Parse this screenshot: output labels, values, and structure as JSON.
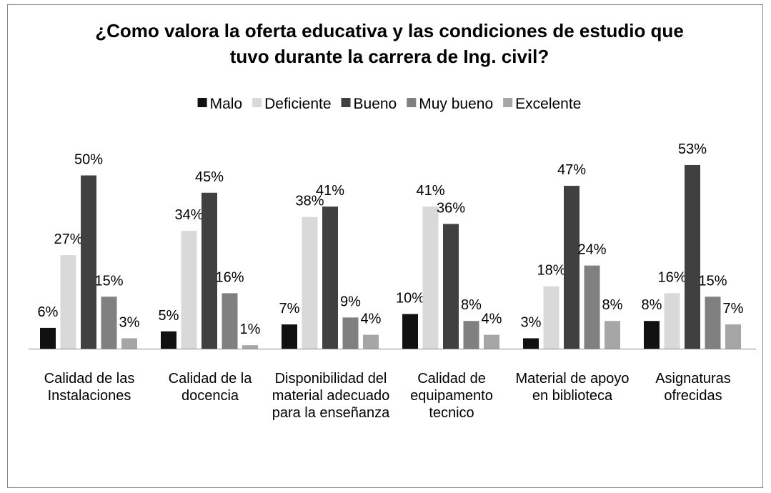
{
  "chart_data": {
    "type": "bar",
    "title": "¿Como valora la oferta educativa y las condiciones de estudio que tuvo durante la carrera de Ing. civil?",
    "categories": [
      "Calidad de las Instalaciones",
      "Calidad de la docencia",
      "Disponibilidad del material adecuado para la enseñanza",
      "Calidad de equipamento tecnico",
      "Material de apoyo en biblioteca",
      "Asignaturas ofrecidas"
    ],
    "series": [
      {
        "name": "Malo",
        "color": "#111111",
        "values": [
          6,
          5,
          7,
          10,
          3,
          8
        ],
        "value_labels": [
          "6%",
          "5%",
          "7%",
          "10%",
          "3%",
          "8%"
        ]
      },
      {
        "name": "Deficiente",
        "color": "#d9d9d9",
        "values": [
          27,
          34,
          38,
          41,
          18,
          16
        ],
        "value_labels": [
          "27%",
          "34%",
          "38%",
          "41%",
          "18%",
          "16%"
        ]
      },
      {
        "name": "Bueno",
        "color": "#404040",
        "values": [
          50,
          45,
          41,
          36,
          47,
          53
        ],
        "value_labels": [
          "50%",
          "45%",
          "41%",
          "36%",
          "47%",
          "53%"
        ]
      },
      {
        "name": "Muy bueno",
        "color": "#808080",
        "values": [
          15,
          16,
          9,
          8,
          24,
          15
        ],
        "value_labels": [
          "15%",
          "16%",
          "9%",
          "8%",
          "24%",
          "15%"
        ]
      },
      {
        "name": "Excelente",
        "color": "#a6a6a6",
        "values": [
          3,
          1,
          4,
          4,
          8,
          7
        ],
        "value_labels": [
          "3%",
          "1%",
          "4%",
          "4%",
          "8%",
          "7%"
        ]
      }
    ],
    "legend": "top"
  }
}
